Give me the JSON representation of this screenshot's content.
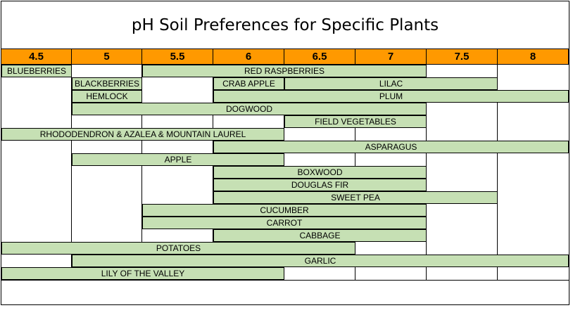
{
  "chart_data": {
    "type": "table",
    "title": "pH Soil Preferences for Specific Plants",
    "categories": [
      "4.5",
      "5",
      "5.5",
      "6",
      "6.5",
      "7",
      "7.5",
      "8"
    ],
    "rows": [
      {
        "bars": [
          {
            "label": "BLUEBERRIES",
            "start": "4.5",
            "end": "4.5"
          },
          {
            "label": "RED RASPBERRIES",
            "start": "5.5",
            "end": "7"
          }
        ]
      },
      {
        "bars": [
          {
            "label": "BLACKBERRIES",
            "start": "5",
            "end": "5"
          },
          {
            "label": "CRAB APPLE",
            "start": "6",
            "end": "6"
          },
          {
            "label": "LILAC",
            "start": "6.5",
            "end": "7.5"
          }
        ]
      },
      {
        "bars": [
          {
            "label": "HEMLOCK",
            "start": "5",
            "end": "5"
          },
          {
            "label": "PLUM",
            "start": "6",
            "end": "8"
          }
        ]
      },
      {
        "bars": [
          {
            "label": "DOGWOOD",
            "start": "5",
            "end": "7"
          }
        ]
      },
      {
        "bars": [
          {
            "label": "FIELD VEGETABLES",
            "start": "6.5",
            "end": "7"
          }
        ]
      },
      {
        "bars": [
          {
            "label": "RHODODENDRON & AZALEA & MOUNTAIN LAUREL",
            "start": "4.5",
            "end": "6"
          }
        ]
      },
      {
        "bars": [
          {
            "label": "ASPARAGUS",
            "start": "6",
            "end": "8"
          }
        ]
      },
      {
        "bars": [
          {
            "label": "APPLE",
            "start": "5",
            "end": "6"
          }
        ]
      },
      {
        "bars": [
          {
            "label": "BOXWOOD",
            "start": "6",
            "end": "7"
          }
        ]
      },
      {
        "bars": [
          {
            "label": "DOUGLAS FIR",
            "start": "6",
            "end": "7"
          }
        ]
      },
      {
        "bars": [
          {
            "label": "SWEET PEA",
            "start": "6",
            "end": "7.5"
          }
        ]
      },
      {
        "bars": [
          {
            "label": "CUCUMBER",
            "start": "5.5",
            "end": "7"
          }
        ]
      },
      {
        "bars": [
          {
            "label": "CARROT",
            "start": "5.5",
            "end": "7"
          }
        ]
      },
      {
        "bars": [
          {
            "label": "CABBAGE",
            "start": "6",
            "end": "7"
          }
        ]
      },
      {
        "bars": [
          {
            "label": "POTATOES",
            "start": "4.5",
            "end": "6.5"
          }
        ]
      },
      {
        "bars": [
          {
            "label": "GARLIC",
            "start": "5",
            "end": "8"
          }
        ]
      },
      {
        "bars": [
          {
            "label": "LILY OF THE VALLEY",
            "start": "4.5",
            "end": "6"
          }
        ]
      }
    ],
    "colors": {
      "header": "#ff9900",
      "bar": "#c6e0b4"
    }
  }
}
